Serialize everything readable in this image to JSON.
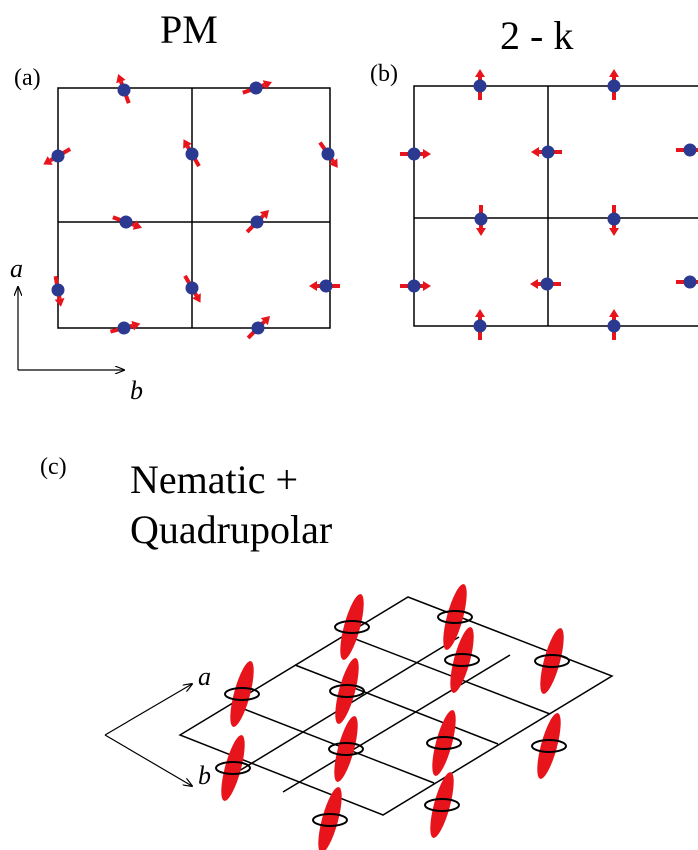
{
  "panel_a": {
    "tag": "(a)",
    "title": "PM"
  },
  "panel_b": {
    "tag": "(b)",
    "title": "2 - k"
  },
  "panel_c": {
    "tag": "(c)",
    "title_line1": "Nematic +",
    "title_line2": "Quadrupolar"
  },
  "axes": {
    "a": "a",
    "b": "b"
  },
  "colors": {
    "spin": "#e8141c",
    "site": "#2b3990",
    "line": "#000000"
  }
}
